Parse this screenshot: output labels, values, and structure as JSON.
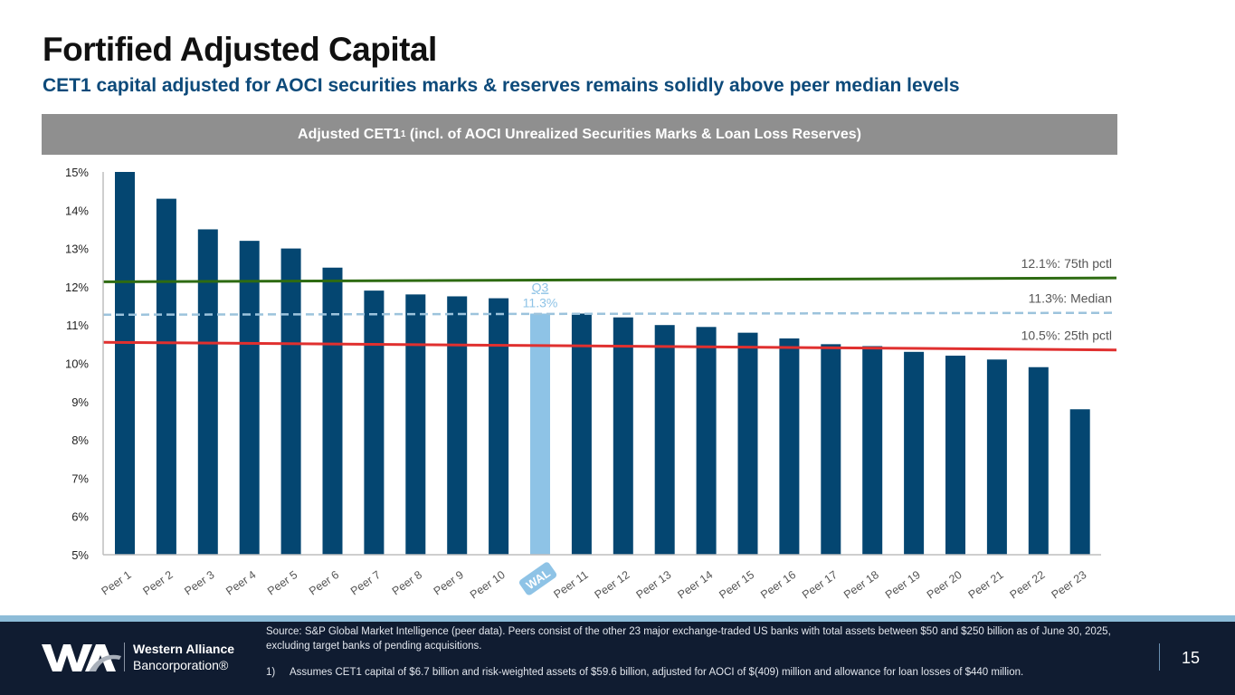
{
  "header": {
    "title": "Fortified Adjusted Capital",
    "subtitle": "CET1 capital adjusted for AOCI securities marks & reserves remains solidly above peer median levels"
  },
  "chart_data": {
    "type": "bar",
    "title": "Adjusted CET1",
    "title_superscript": "1",
    "title_suffix": " (incl. of AOCI Unrealized Securities Marks & Loan Loss Reserves)",
    "xlabel": "",
    "ylabel": "",
    "ylim": [
      5,
      15
    ],
    "yticks": [
      5,
      6,
      7,
      8,
      9,
      10,
      11,
      12,
      13,
      14,
      15
    ],
    "ytick_format": "{v}%",
    "grid": false,
    "categories": [
      "Peer 1",
      "Peer 2",
      "Peer 3",
      "Peer 4",
      "Peer 5",
      "Peer 6",
      "Peer 7",
      "Peer 8",
      "Peer 9",
      "Peer 10",
      "WAL",
      "Peer 11",
      "Peer 12",
      "Peer 13",
      "Peer 14",
      "Peer 15",
      "Peer 16",
      "Peer 17",
      "Peer 18",
      "Peer 19",
      "Peer 20",
      "Peer 21",
      "Peer 22",
      "Peer 23"
    ],
    "values": [
      15.0,
      14.3,
      13.5,
      13.2,
      13.0,
      12.5,
      11.9,
      11.8,
      11.75,
      11.7,
      11.3,
      11.3,
      11.2,
      11.0,
      10.95,
      10.8,
      10.65,
      10.5,
      10.45,
      10.3,
      10.2,
      10.1,
      9.9,
      8.8
    ],
    "highlight": {
      "category": "WAL",
      "label_line1": "Q3",
      "label_line2": "11.3%"
    },
    "reference_lines": [
      {
        "name": "75th pctl",
        "label": "12.1%: 75th pctl",
        "value_start": 12.13,
        "value_end": 12.23,
        "style": "solid",
        "color": "#2e6b12"
      },
      {
        "name": "Median",
        "label": "11.3%: Median",
        "value_start": 11.27,
        "value_end": 11.32,
        "style": "dashed",
        "color": "#9cc3dc"
      },
      {
        "name": "25th pctl",
        "label": "10.5%: 25th pctl",
        "value_start": 10.55,
        "value_end": 10.35,
        "style": "solid",
        "color": "#e0302f"
      }
    ],
    "colors": {
      "bar": "#044671",
      "highlight_bar": "#8ec3e6",
      "axis": "#bdbdbd",
      "tick_label": "#222222",
      "category_label": "#555555",
      "ref_label": "#555555"
    }
  },
  "footer": {
    "logo_name_line1": "Western Alliance",
    "logo_name_line2": "Bancorporation®",
    "source": "Source: S&P Global Market Intelligence (peer data). Peers consist of the other 23 major exchange-traded US banks with total assets between $50 and $250 billion as of June 30, 2025, excluding target banks of pending acquisitions.",
    "footnote_number": "1)",
    "footnote_text": "Assumes CET1 capital of $6.7 billion and risk-weighted assets of $59.6 billion, adjusted for AOCI of $(409) million and allowance for loan losses of $440 million.",
    "page_number": "15"
  }
}
